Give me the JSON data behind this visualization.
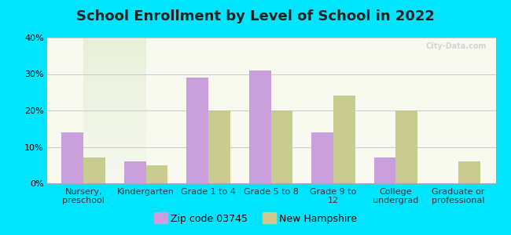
{
  "title": "School Enrollment by Level of School in 2022",
  "categories": [
    "Nursery,\npreschool",
    "Kindergarten",
    "Grade 1 to 4",
    "Grade 5 to 8",
    "Grade 9 to\n12",
    "College\nundergrad",
    "Graduate or\nprofessional"
  ],
  "zip_values": [
    14,
    6,
    29,
    31,
    14,
    7,
    0
  ],
  "nh_values": [
    7,
    5,
    20,
    20,
    24,
    20,
    6
  ],
  "zip_color": "#c9a0dc",
  "nh_color": "#c8cc90",
  "background_outer": "#00e5ff",
  "background_inner": "#f0f4e8",
  "background_gradient_top": "#e8f0e0",
  "background_gradient_bottom": "#f8faf0",
  "ylim": [
    0,
    40
  ],
  "yticks": [
    0,
    10,
    20,
    30,
    40
  ],
  "ylabel_format": "%",
  "legend_zip_label": "Zip code 03745",
  "legend_nh_label": "New Hampshire",
  "bar_width": 0.35,
  "title_fontsize": 13,
  "tick_fontsize": 8,
  "legend_fontsize": 9,
  "watermark": "City-Data.com"
}
